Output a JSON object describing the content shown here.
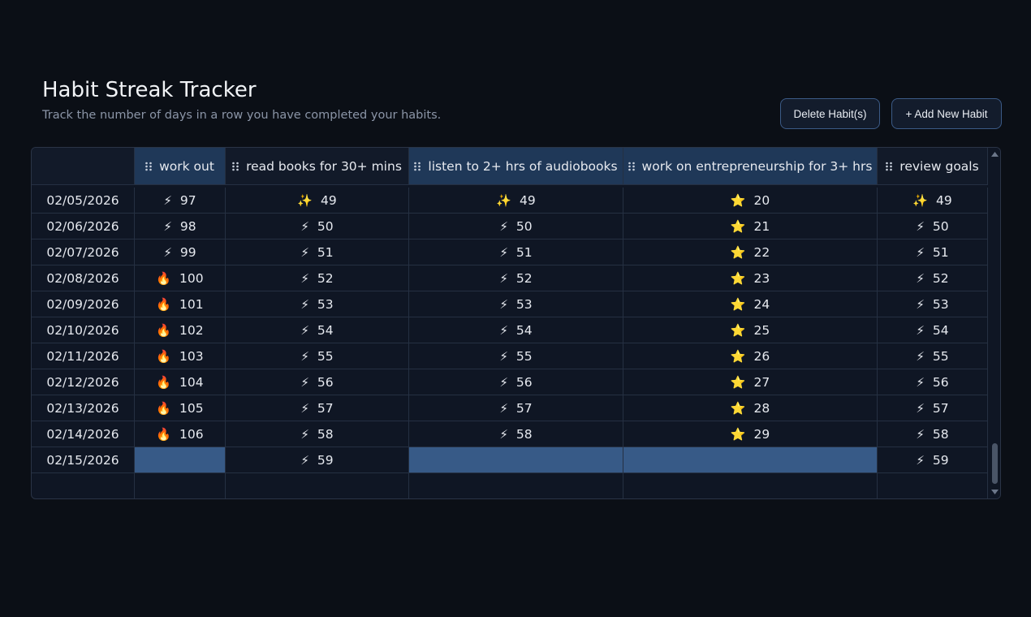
{
  "header": {
    "title": "Habit Streak Tracker",
    "subtitle": "Track the number of days in a row you have completed your habits."
  },
  "buttons": [
    "Delete Habit(s)",
    "+ Add New Habit"
  ],
  "table": {
    "columns": [
      "work out",
      "read books for 30+ mins",
      "listen to 2+ hrs of audiobooks",
      "work on entrepreneurship for 3+ hrs",
      "review goals"
    ],
    "rows": [
      {
        "date": "02/05/2026",
        "cells": [
          {
            "icon": "⚡",
            "value": 97
          },
          {
            "icon": "✨",
            "value": 49
          },
          {
            "icon": "✨",
            "value": 49
          },
          {
            "icon": "⭐",
            "value": 20
          },
          {
            "icon": "✨",
            "value": 49
          }
        ]
      },
      {
        "date": "02/06/2026",
        "cells": [
          {
            "icon": "⚡",
            "value": 98
          },
          {
            "icon": "⚡",
            "value": 50
          },
          {
            "icon": "⚡",
            "value": 50
          },
          {
            "icon": "⭐",
            "value": 21
          },
          {
            "icon": "⚡",
            "value": 50
          }
        ]
      },
      {
        "date": "02/07/2026",
        "cells": [
          {
            "icon": "⚡",
            "value": 99
          },
          {
            "icon": "⚡",
            "value": 51
          },
          {
            "icon": "⚡",
            "value": 51
          },
          {
            "icon": "⭐",
            "value": 22
          },
          {
            "icon": "⚡",
            "value": 51
          }
        ]
      },
      {
        "date": "02/08/2026",
        "cells": [
          {
            "icon": "🔥",
            "value": 100
          },
          {
            "icon": "⚡",
            "value": 52
          },
          {
            "icon": "⚡",
            "value": 52
          },
          {
            "icon": "⭐",
            "value": 23
          },
          {
            "icon": "⚡",
            "value": 52
          }
        ]
      },
      {
        "date": "02/09/2026",
        "cells": [
          {
            "icon": "🔥",
            "value": 101
          },
          {
            "icon": "⚡",
            "value": 53
          },
          {
            "icon": "⚡",
            "value": 53
          },
          {
            "icon": "⭐",
            "value": 24
          },
          {
            "icon": "⚡",
            "value": 53
          }
        ]
      },
      {
        "date": "02/10/2026",
        "cells": [
          {
            "icon": "🔥",
            "value": 102
          },
          {
            "icon": "⚡",
            "value": 54
          },
          {
            "icon": "⚡",
            "value": 54
          },
          {
            "icon": "⭐",
            "value": 25
          },
          {
            "icon": "⚡",
            "value": 54
          }
        ]
      },
      {
        "date": "02/11/2026",
        "cells": [
          {
            "icon": "🔥",
            "value": 103
          },
          {
            "icon": "⚡",
            "value": 55
          },
          {
            "icon": "⚡",
            "value": 55
          },
          {
            "icon": "⭐",
            "value": 26
          },
          {
            "icon": "⚡",
            "value": 55
          }
        ]
      },
      {
        "date": "02/12/2026",
        "cells": [
          {
            "icon": "🔥",
            "value": 104
          },
          {
            "icon": "⚡",
            "value": 56
          },
          {
            "icon": "⚡",
            "value": 56
          },
          {
            "icon": "⭐",
            "value": 27
          },
          {
            "icon": "⚡",
            "value": 56
          }
        ]
      },
      {
        "date": "02/13/2026",
        "cells": [
          {
            "icon": "🔥",
            "value": 105
          },
          {
            "icon": "⚡",
            "value": 57
          },
          {
            "icon": "⚡",
            "value": 57
          },
          {
            "icon": "⭐",
            "value": 28
          },
          {
            "icon": "⚡",
            "value": 57
          }
        ]
      },
      {
        "date": "02/14/2026",
        "cells": [
          {
            "icon": "🔥",
            "value": 106
          },
          {
            "icon": "⚡",
            "value": 58
          },
          {
            "icon": "⚡",
            "value": 58
          },
          {
            "icon": "⭐",
            "value": 29
          },
          {
            "icon": "⚡",
            "value": 58
          }
        ]
      },
      {
        "date": "02/15/2026",
        "cells": [
          null,
          {
            "icon": "⚡",
            "value": 59
          },
          null,
          null,
          {
            "icon": "⚡",
            "value": 59
          }
        ]
      }
    ]
  }
}
